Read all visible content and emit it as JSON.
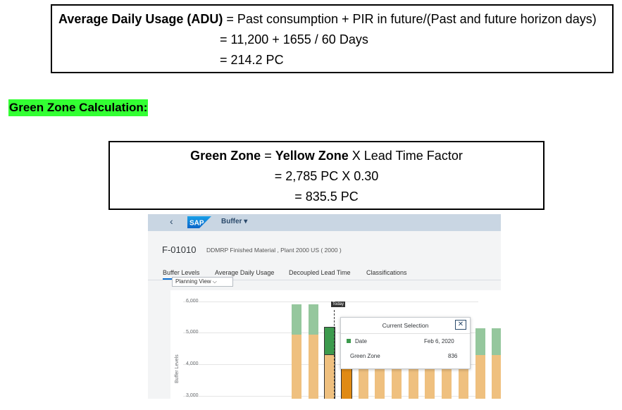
{
  "adu": {
    "label": "Average Daily Usage (ADU)",
    "formula": " = Past consumption + PIR in future/(Past and future horizon days)",
    "step1": "= 11,200 + 1655 / 60 Days",
    "step2": "= 214.2 PC"
  },
  "green_heading": "Green Zone Calculation:",
  "green_zone": {
    "label1": "Green Zone",
    "eq": " = ",
    "label2": "Yellow Zone",
    "rest": " X Lead Time Factor",
    "step1": "= 2,785 PC X 0.30",
    "step2": "= 835.5 PC"
  },
  "sap": {
    "back_icon": "chevron-left-icon",
    "logo_text": "SAP",
    "app_title": "Buffer ▾",
    "object_id": "F-01010",
    "object_desc": "DDMRP Finished Material , Plant 2000 US ( 2000 )",
    "tabs": [
      "Buffer Levels",
      "Average Daily Usage",
      "Decoupled Lead Time",
      "Classifications"
    ],
    "planning_view": "Planning View  ⌵",
    "y_axis_label": "Buffer Levels",
    "today_label": "Today",
    "popup": {
      "title": "Current Selection",
      "close": "✕",
      "date_label": "Date",
      "date_value": "Feb 6, 2020",
      "zone_label": "Green Zone",
      "zone_value": "836"
    },
    "colors": {
      "header": "#c9d6e3",
      "yellow": "#efc07f",
      "green": "#95c79d",
      "selected_green": "#3c9a4d",
      "selected_yellow": "#e08a14"
    }
  },
  "chart_data": {
    "type": "bar",
    "ylabel": "Buffer Levels",
    "yticks": [
      "6,000",
      "5,000",
      "4,000",
      "3,000"
    ],
    "ylim": [
      3000,
      6000
    ],
    "selected": {
      "date": "Feb 6, 2020",
      "green_zone": 836
    }
  }
}
